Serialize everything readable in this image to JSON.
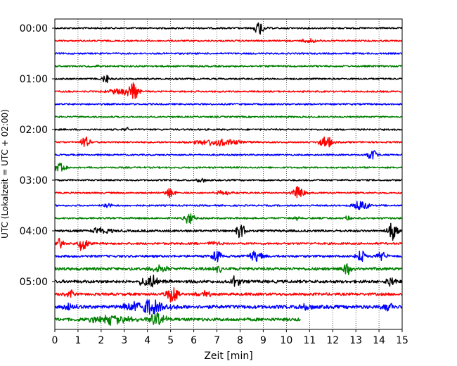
{
  "chart_data": {
    "type": "line",
    "title": "",
    "xlabel": "Zeit  [min]",
    "ylabel": "UTC (Lokalzeit = UTC + 02:00)",
    "xlim": [
      0,
      15
    ],
    "x_ticks": [
      "0",
      "1",
      "2",
      "3",
      "4",
      "5",
      "6",
      "7",
      "8",
      "9",
      "10",
      "11",
      "12",
      "13",
      "14",
      "15"
    ],
    "y_tick_labels": [
      "00:00",
      "01:00",
      "02:00",
      "03:00",
      "04:00",
      "05:00"
    ],
    "y_tick_rows": [
      0,
      4,
      8,
      12,
      16,
      20
    ],
    "grid": "vertical dotted at each minute",
    "row_interval_min": 15,
    "colors": [
      "#000000",
      "#ff0000",
      "#0000ff",
      "#008000"
    ],
    "rows": [
      {
        "start": "00:00",
        "color": "#000000",
        "end_min": 15,
        "noise": 1.0,
        "events": [
          {
            "t": 8.85,
            "amp": 10,
            "dur": 0.3
          }
        ]
      },
      {
        "start": "00:15",
        "color": "#ff0000",
        "end_min": 15,
        "noise": 1.0,
        "events": [
          {
            "t": 11.0,
            "amp": 3,
            "dur": 0.6
          }
        ]
      },
      {
        "start": "00:30",
        "color": "#0000ff",
        "end_min": 15,
        "noise": 1.0,
        "events": []
      },
      {
        "start": "00:45",
        "color": "#008000",
        "end_min": 15,
        "noise": 1.1,
        "events": [
          {
            "t": 1.8,
            "amp": 3,
            "dur": 0.2
          }
        ]
      },
      {
        "start": "01:00",
        "color": "#000000",
        "end_min": 15,
        "noise": 1.0,
        "events": [
          {
            "t": 2.2,
            "amp": 6,
            "dur": 0.2
          }
        ]
      },
      {
        "start": "01:15",
        "color": "#ff0000",
        "end_min": 15,
        "noise": 1.0,
        "events": [
          {
            "t": 3.0,
            "amp": 5,
            "dur": 1.0
          },
          {
            "t": 3.4,
            "amp": 12,
            "dur": 0.3
          }
        ]
      },
      {
        "start": "01:30",
        "color": "#0000ff",
        "end_min": 15,
        "noise": 1.0,
        "events": []
      },
      {
        "start": "01:45",
        "color": "#008000",
        "end_min": 15,
        "noise": 1.0,
        "events": []
      },
      {
        "start": "02:00",
        "color": "#000000",
        "end_min": 15,
        "noise": 1.0,
        "events": [
          {
            "t": 3.1,
            "amp": 3,
            "dur": 0.2
          }
        ]
      },
      {
        "start": "02:15",
        "color": "#ff0000",
        "end_min": 15,
        "noise": 1.0,
        "events": [
          {
            "t": 1.3,
            "amp": 8,
            "dur": 0.3
          },
          {
            "t": 7.0,
            "amp": 5,
            "dur": 1.5
          },
          {
            "t": 11.7,
            "amp": 9,
            "dur": 0.4
          }
        ]
      },
      {
        "start": "02:30",
        "color": "#0000ff",
        "end_min": 15,
        "noise": 1.0,
        "events": [
          {
            "t": 13.7,
            "amp": 8,
            "dur": 0.3
          }
        ]
      },
      {
        "start": "02:45",
        "color": "#008000",
        "end_min": 15,
        "noise": 1.0,
        "events": [
          {
            "t": 0.2,
            "amp": 6,
            "dur": 0.4
          }
        ]
      },
      {
        "start": "03:00",
        "color": "#000000",
        "end_min": 15,
        "noise": 1.0,
        "events": [
          {
            "t": 6.3,
            "amp": 3,
            "dur": 0.3
          }
        ]
      },
      {
        "start": "03:15",
        "color": "#ff0000",
        "end_min": 15,
        "noise": 1.0,
        "events": [
          {
            "t": 5.0,
            "amp": 7,
            "dur": 0.3
          },
          {
            "t": 7.3,
            "amp": 3,
            "dur": 0.5
          },
          {
            "t": 10.5,
            "amp": 10,
            "dur": 0.4
          }
        ]
      },
      {
        "start": "03:30",
        "color": "#0000ff",
        "end_min": 15,
        "noise": 1.0,
        "events": [
          {
            "t": 2.3,
            "amp": 4,
            "dur": 0.3
          },
          {
            "t": 13.2,
            "amp": 7,
            "dur": 0.5
          }
        ]
      },
      {
        "start": "03:45",
        "color": "#008000",
        "end_min": 15,
        "noise": 1.1,
        "events": [
          {
            "t": 5.8,
            "amp": 9,
            "dur": 0.3
          },
          {
            "t": 10.4,
            "amp": 3,
            "dur": 0.2
          },
          {
            "t": 12.7,
            "amp": 3,
            "dur": 0.3
          }
        ]
      },
      {
        "start": "04:00",
        "color": "#000000",
        "end_min": 15,
        "noise": 1.4,
        "events": [
          {
            "t": 2.0,
            "amp": 5,
            "dur": 0.6
          },
          {
            "t": 8.0,
            "amp": 12,
            "dur": 0.3
          },
          {
            "t": 14.6,
            "amp": 16,
            "dur": 0.3
          }
        ]
      },
      {
        "start": "04:15",
        "color": "#ff0000",
        "end_min": 15,
        "noise": 1.3,
        "events": [
          {
            "t": 0.2,
            "amp": 8,
            "dur": 0.3
          },
          {
            "t": 1.2,
            "amp": 11,
            "dur": 0.3
          },
          {
            "t": 6.9,
            "amp": 4,
            "dur": 0.3
          }
        ]
      },
      {
        "start": "04:30",
        "color": "#0000ff",
        "end_min": 15,
        "noise": 1.4,
        "events": [
          {
            "t": 7.0,
            "amp": 9,
            "dur": 0.3
          },
          {
            "t": 8.7,
            "amp": 9,
            "dur": 0.4
          },
          {
            "t": 13.2,
            "amp": 8,
            "dur": 0.3
          },
          {
            "t": 14.1,
            "amp": 9,
            "dur": 0.3
          }
        ]
      },
      {
        "start": "04:45",
        "color": "#008000",
        "end_min": 15,
        "noise": 1.8,
        "events": [
          {
            "t": 4.5,
            "amp": 5,
            "dur": 0.6
          },
          {
            "t": 7.1,
            "amp": 5,
            "dur": 0.3
          },
          {
            "t": 12.6,
            "amp": 8,
            "dur": 0.3
          }
        ]
      },
      {
        "start": "05:00",
        "color": "#000000",
        "end_min": 15,
        "noise": 1.8,
        "events": [
          {
            "t": 4.1,
            "amp": 9,
            "dur": 0.6
          },
          {
            "t": 7.8,
            "amp": 8,
            "dur": 0.3
          },
          {
            "t": 14.5,
            "amp": 6,
            "dur": 0.3
          }
        ]
      },
      {
        "start": "05:15",
        "color": "#ff0000",
        "end_min": 15,
        "noise": 1.7,
        "events": [
          {
            "t": 0.7,
            "amp": 5,
            "dur": 0.3
          },
          {
            "t": 5.1,
            "amp": 11,
            "dur": 0.4
          },
          {
            "t": 6.5,
            "amp": 4,
            "dur": 0.6
          }
        ]
      },
      {
        "start": "05:30",
        "color": "#0000ff",
        "end_min": 15,
        "noise": 2.2,
        "events": [
          {
            "t": 0.6,
            "amp": 6,
            "dur": 0.4
          },
          {
            "t": 4.0,
            "amp": 10,
            "dur": 1.3
          },
          {
            "t": 10.8,
            "amp": 4,
            "dur": 0.4
          },
          {
            "t": 14.4,
            "amp": 5,
            "dur": 0.4
          }
        ]
      },
      {
        "start": "05:45",
        "color": "#008000",
        "end_min": 10.6,
        "noise": 1.9,
        "events": [
          {
            "t": 2.4,
            "amp": 7,
            "dur": 1.2
          },
          {
            "t": 4.4,
            "amp": 10,
            "dur": 0.6
          }
        ]
      }
    ]
  }
}
